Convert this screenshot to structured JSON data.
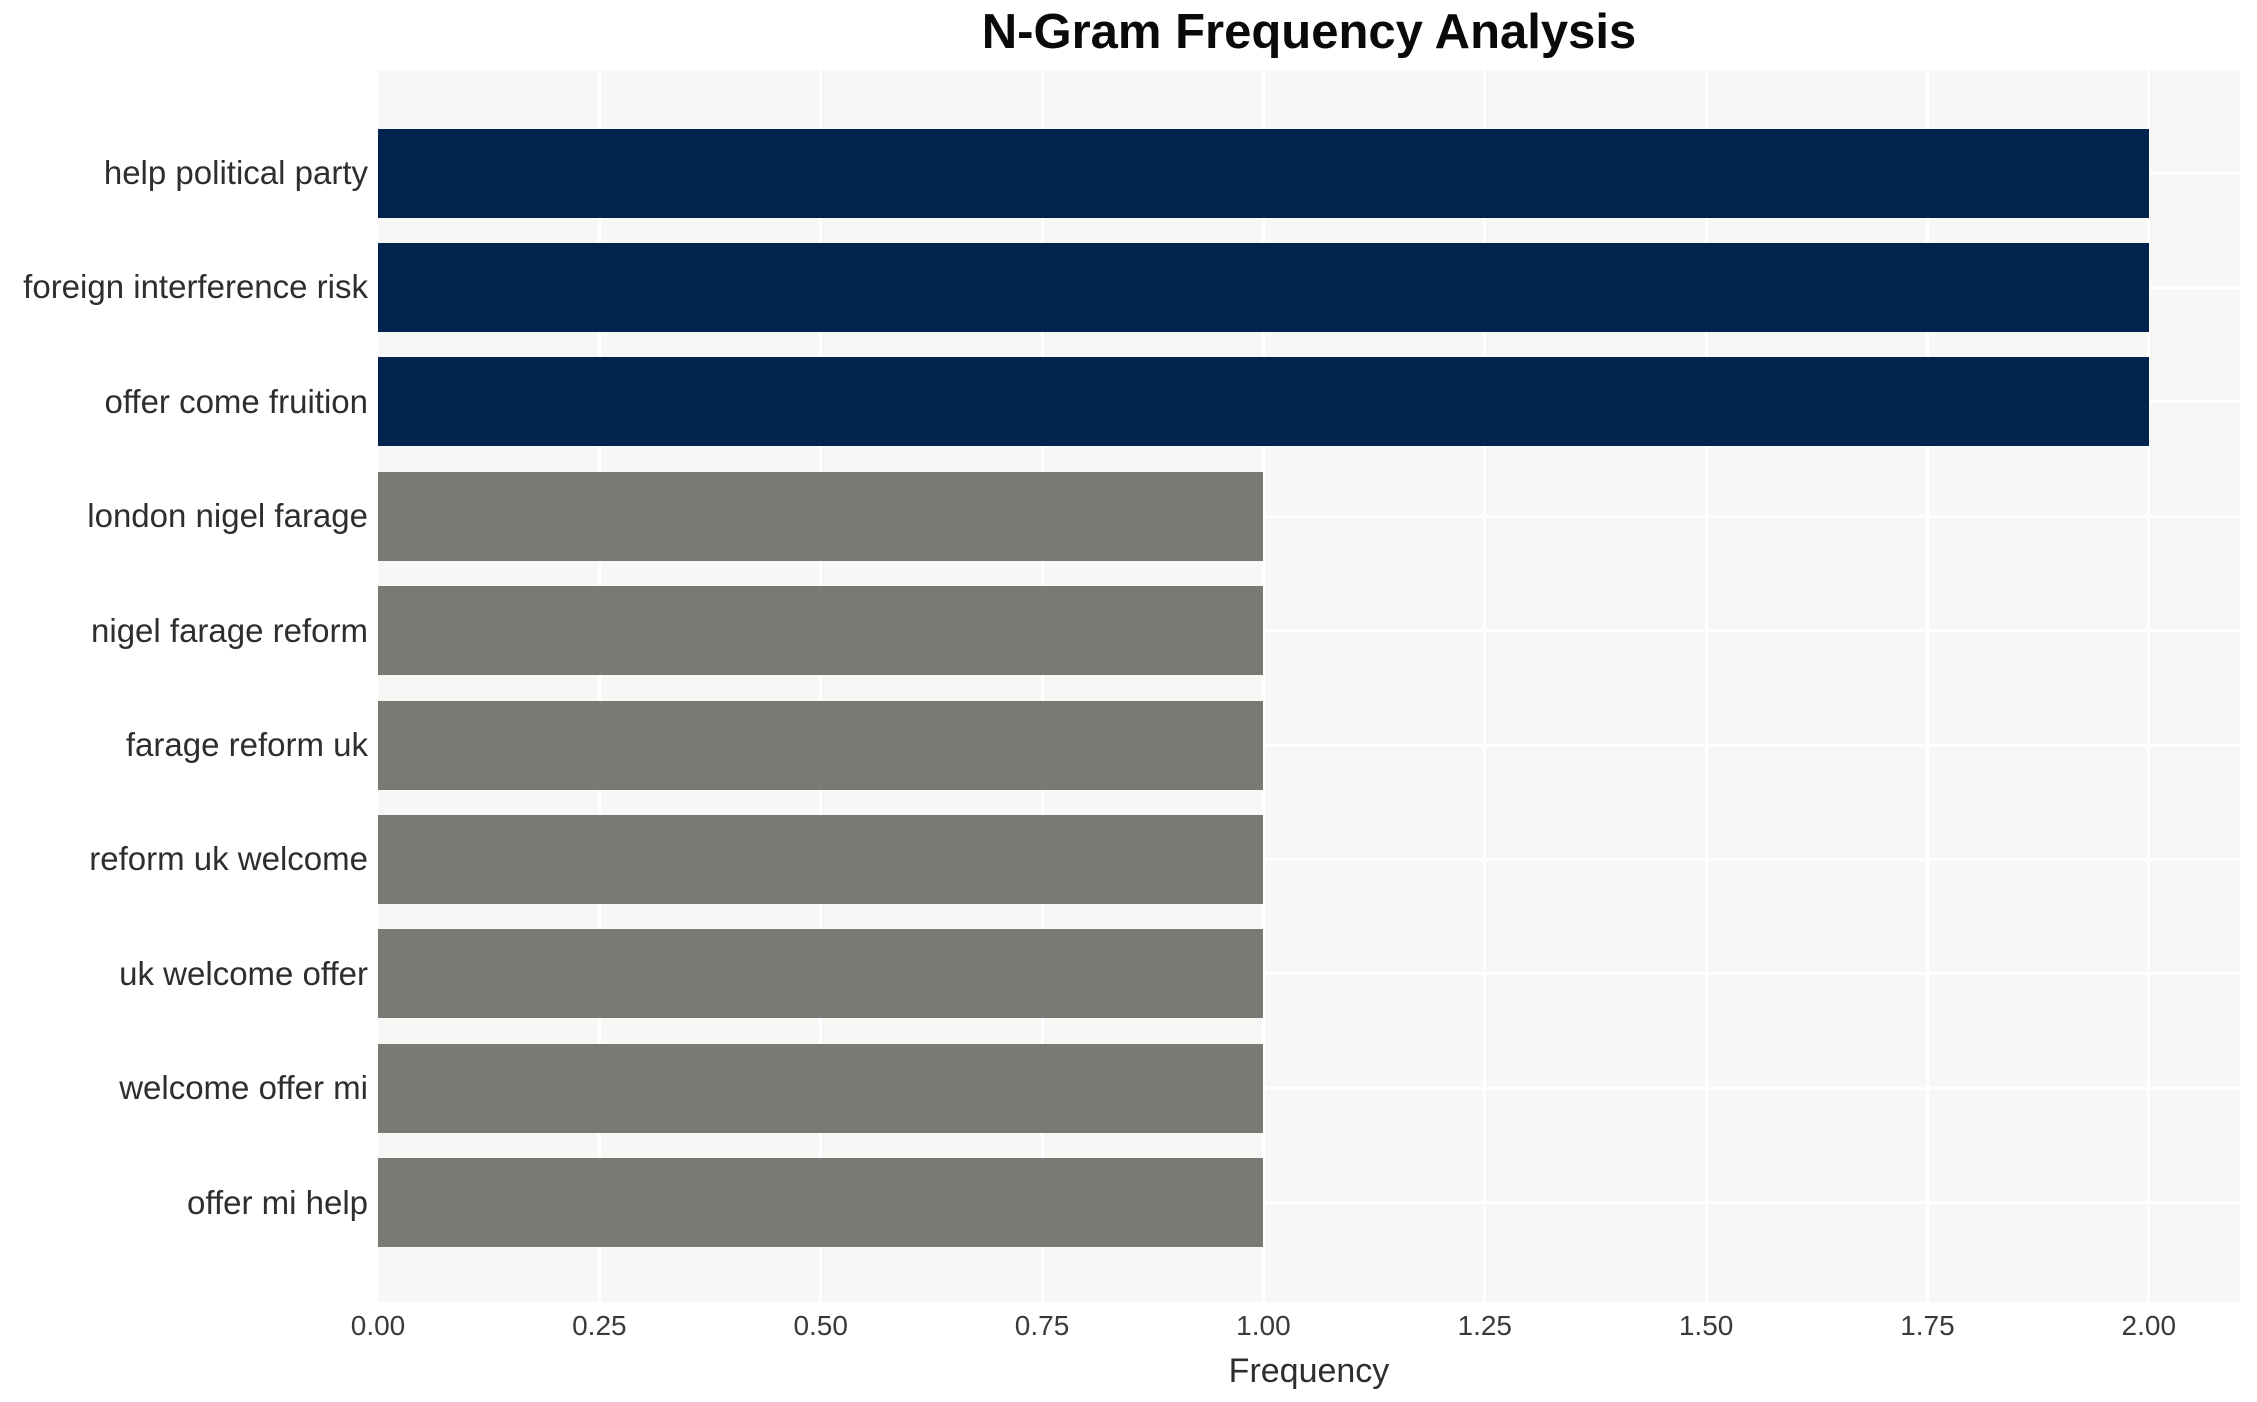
{
  "chart_data": {
    "type": "bar",
    "orientation": "horizontal",
    "title": "N-Gram Frequency Analysis",
    "xlabel": "Frequency",
    "ylabel": "",
    "categories": [
      "help political party",
      "foreign interference risk",
      "offer come fruition",
      "london nigel farage",
      "nigel farage reform",
      "farage reform uk",
      "reform uk welcome",
      "uk welcome offer",
      "welcome offer mi",
      "offer mi help"
    ],
    "values": [
      2,
      2,
      2,
      1,
      1,
      1,
      1,
      1,
      1,
      1
    ],
    "bar_colors": [
      "#02234e",
      "#02234e",
      "#02234e",
      "#7a7a75",
      "#7a7a75",
      "#7a7a75",
      "#7a7a75",
      "#7a7a75",
      "#7a7a75",
      "#7a7a75"
    ],
    "xtick_labels": [
      "0.00",
      "0.25",
      "0.50",
      "0.75",
      "1.00",
      "1.25",
      "1.50",
      "1.75",
      "2.00"
    ],
    "xtick_values": [
      0,
      0.25,
      0.5,
      0.75,
      1.0,
      1.25,
      1.5,
      1.75,
      2.0
    ],
    "xlim": [
      0,
      2.103
    ],
    "legend": "none",
    "grid": "on"
  },
  "colors": {
    "bar_high": "#02234e",
    "bar_low": "#7a7a75",
    "plot_background": "#f7f7f6",
    "page_background": "#ffffff",
    "gridline": "#ffffff",
    "title_text": "#0a0a0a",
    "label_text": "#2e2e2e"
  }
}
